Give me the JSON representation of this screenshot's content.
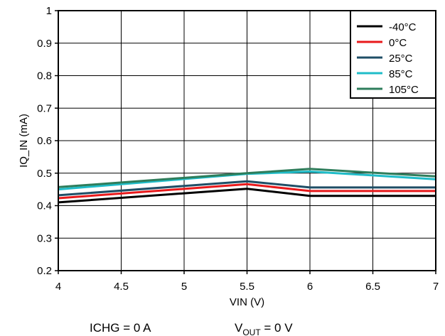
{
  "chart_data": {
    "type": "line",
    "xlabel": "VIN (V)",
    "ylabel": "IQ_IN (mA)",
    "xlim": [
      4,
      7
    ],
    "ylim": [
      0.2,
      1
    ],
    "x_ticks": [
      4,
      4.5,
      5,
      5.5,
      6,
      6.5,
      7
    ],
    "x_tick_labels": [
      "4",
      "4.5",
      "5",
      "5.5",
      "6",
      "6.5",
      "7"
    ],
    "y_ticks": [
      0.2,
      0.3,
      0.4,
      0.5,
      0.6,
      0.7,
      0.8,
      0.9,
      1
    ],
    "y_tick_labels": [
      "0.2",
      "0.3",
      "0.4",
      "0.5",
      "0.6",
      "0.7",
      "0.8",
      "0.9",
      "1"
    ],
    "grid": true,
    "legend_position": "top-right",
    "x": [
      4,
      5.5,
      6,
      7
    ],
    "series": [
      {
        "name": "-40°C",
        "color": "#000000",
        "values": [
          0.41,
          0.452,
          0.43,
          0.43
        ]
      },
      {
        "name": "0°C",
        "color": "#e8191b",
        "values": [
          0.423,
          0.466,
          0.445,
          0.445
        ]
      },
      {
        "name": "25°C",
        "color": "#1f4e66",
        "values": [
          0.432,
          0.475,
          0.456,
          0.456
        ]
      },
      {
        "name": "85°C",
        "color": "#1fbcc8",
        "values": [
          0.45,
          0.498,
          0.505,
          0.481
        ]
      },
      {
        "name": "105°C",
        "color": "#2e7d5b",
        "values": [
          0.457,
          0.5,
          0.513,
          0.49
        ]
      }
    ]
  },
  "notes": {
    "ichg": "ICHG = 0 A",
    "vout_prefix": "V",
    "vout_sub": "OUT",
    "vout_suffix": " = 0 V"
  }
}
